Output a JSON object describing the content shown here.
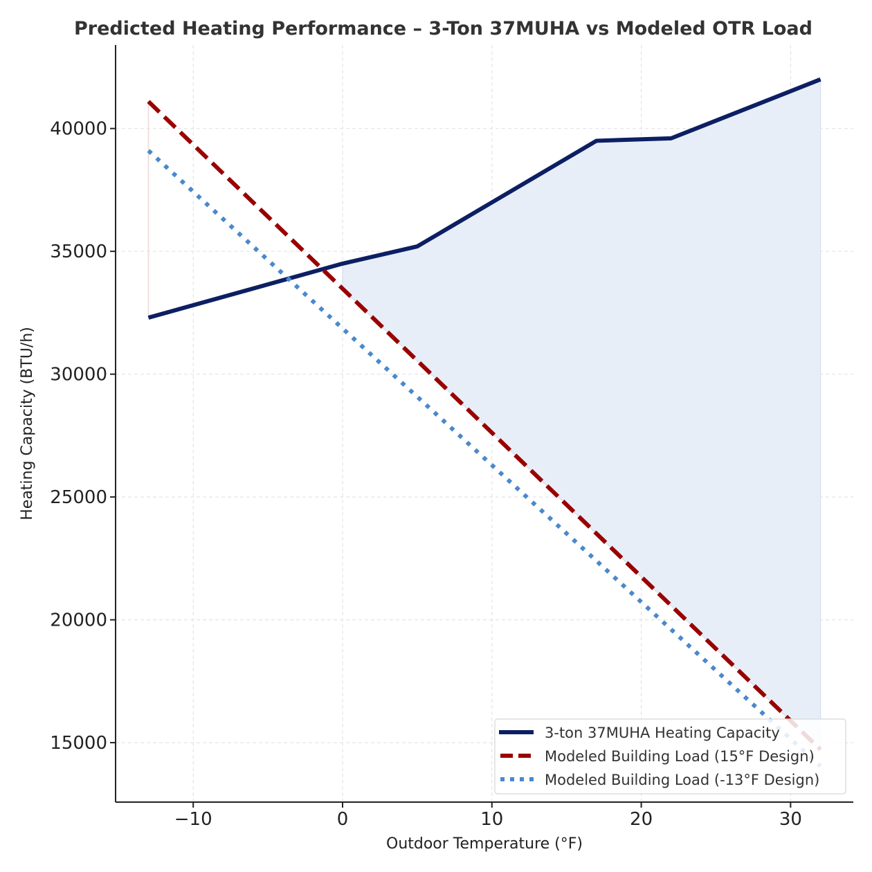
{
  "chart_data": {
    "type": "line",
    "title": "Predicted Heating Performance – 3-Ton 37MUHA vs Modeled OTR Load",
    "xlabel": "Outdoor Temperature (°F)",
    "ylabel": "Heating Capacity (BTU/h)",
    "xlim": [
      -15.2,
      34.2
    ],
    "ylim": [
      12580,
      43400
    ],
    "xticks": [
      -10,
      0,
      10,
      20,
      30
    ],
    "xtick_labels": [
      "−10",
      "0",
      "10",
      "20",
      "30"
    ],
    "yticks": [
      15000,
      20000,
      25000,
      30000,
      35000,
      40000
    ],
    "ytick_labels": [
      "15000",
      "20000",
      "25000",
      "30000",
      "35000",
      "40000"
    ],
    "grid": true,
    "legend_position": "bottom-right",
    "series": [
      {
        "name": "3-ton 37MUHA Heating Capacity",
        "style": "solid",
        "color": "#0d1f63",
        "x": [
          -13,
          0,
          5,
          17,
          22,
          32
        ],
        "y": [
          32300,
          34500,
          35200,
          39500,
          39600,
          42000
        ]
      },
      {
        "name": "Modeled Building Load (15°F Design)",
        "style": "dashed",
        "color": "#990000",
        "x": [
          -13,
          0,
          5,
          17,
          22,
          32
        ],
        "y": [
          41100,
          33480,
          30550,
          23510,
          20580,
          14720
        ]
      },
      {
        "name": "Modeled Building Load (-13°F Design)",
        "style": "dotted",
        "color": "#4a88cc",
        "x": [
          -13,
          0,
          5,
          17,
          22,
          32
        ],
        "y": [
          39100,
          31860,
          29080,
          22400,
          19610,
          14040
        ]
      }
    ],
    "fill_surplus_color": "#e8eef7",
    "fill_deficit_color": "#f2dede"
  }
}
